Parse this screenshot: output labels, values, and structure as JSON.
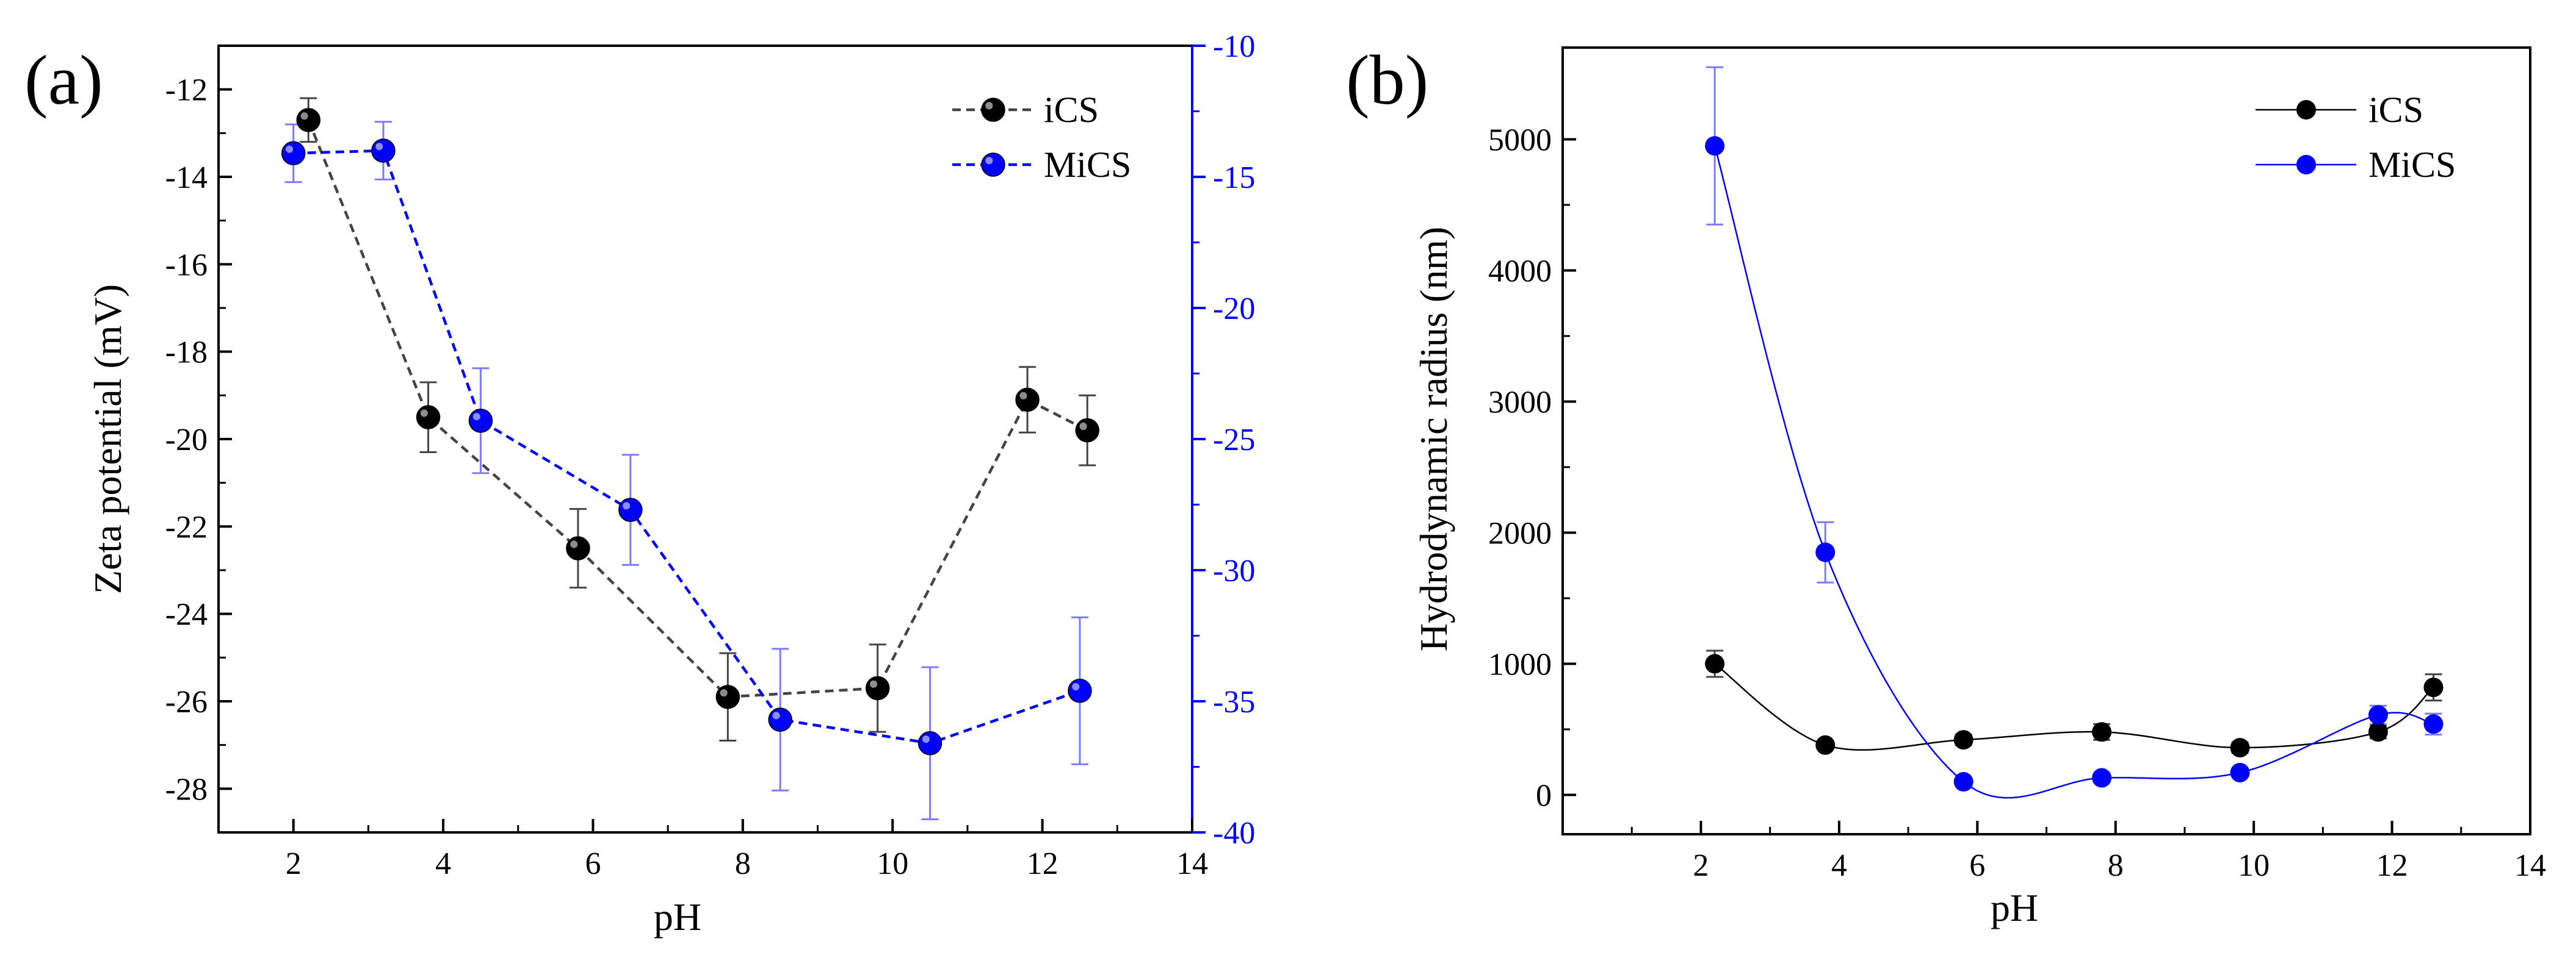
{
  "colors": {
    "black": "#000000",
    "blue": "#0000ff",
    "ics_line": "#444444",
    "errbar_black": "#444444",
    "errbar_blue": "#7b7bff"
  },
  "panels": {
    "a": {
      "label": "(a)"
    },
    "b": {
      "label": "(b)"
    }
  },
  "chart_data": [
    {
      "type": "scatter",
      "panel": "(a)",
      "line_style": "dashed",
      "xlabel": "pH",
      "ylabel": "Zeta potential (mV)",
      "xlim": [
        1,
        14
      ],
      "x_ticks": [
        2,
        4,
        6,
        8,
        10,
        12,
        14
      ],
      "ylim_left": [
        -29,
        -11
      ],
      "y_ticks_left": [
        -28,
        -26,
        -24,
        -22,
        -20,
        -18,
        -16,
        -14,
        -12
      ],
      "ylim_right": [
        -40,
        -10
      ],
      "y_ticks_right": [
        -40,
        -35,
        -30,
        -25,
        -20,
        -15,
        -10
      ],
      "legend_position": "top-right",
      "grid": false,
      "series": [
        {
          "name": "iCS",
          "axis": "left",
          "color": "#000000",
          "x": [
            2.2,
            3.8,
            5.8,
            7.8,
            9.8,
            11.8,
            12.6
          ],
          "y": [
            -12.7,
            -19.5,
            -22.5,
            -25.9,
            -25.7,
            -19.1,
            -19.8
          ],
          "err": [
            0.5,
            0.8,
            0.9,
            1.0,
            1.0,
            0.75,
            0.8
          ]
        },
        {
          "name": "MiCS",
          "axis": "right",
          "color": "#0000ff",
          "x": [
            2.0,
            3.2,
            4.5,
            6.5,
            8.5,
            10.5,
            12.5
          ],
          "y": [
            -14.1,
            -14.0,
            -24.3,
            -27.7,
            -35.7,
            -36.6,
            -34.6
          ],
          "err": [
            1.1,
            1.1,
            2.0,
            2.1,
            2.7,
            2.9,
            2.8
          ]
        }
      ]
    },
    {
      "type": "scatter",
      "panel": "(b)",
      "line_style": "smooth spline",
      "xlabel": "pH",
      "ylabel": "Hydrodynamic radius (nm)",
      "xlim": [
        0,
        14
      ],
      "x_ticks": [
        2,
        4,
        6,
        8,
        10,
        12,
        14
      ],
      "ylim": [
        -300,
        5700
      ],
      "y_ticks": [
        0,
        1000,
        2000,
        3000,
        4000,
        5000
      ],
      "legend_position": "top-right",
      "grid": false,
      "series": [
        {
          "name": "iCS",
          "color": "#000000",
          "x": [
            2.2,
            3.8,
            5.8,
            7.8,
            9.8,
            11.8,
            12.6
          ],
          "y": [
            1000,
            380,
            420,
            480,
            360,
            480,
            820
          ],
          "err": [
            100,
            30,
            40,
            60,
            40,
            50,
            100
          ]
        },
        {
          "name": "MiCS",
          "color": "#0000ff",
          "x": [
            2.2,
            3.8,
            5.8,
            7.8,
            9.8,
            11.8,
            12.6
          ],
          "y": [
            4950,
            1850,
            100,
            130,
            170,
            610,
            540
          ],
          "err": [
            600,
            230,
            30,
            30,
            30,
            70,
            80
          ]
        }
      ]
    }
  ]
}
